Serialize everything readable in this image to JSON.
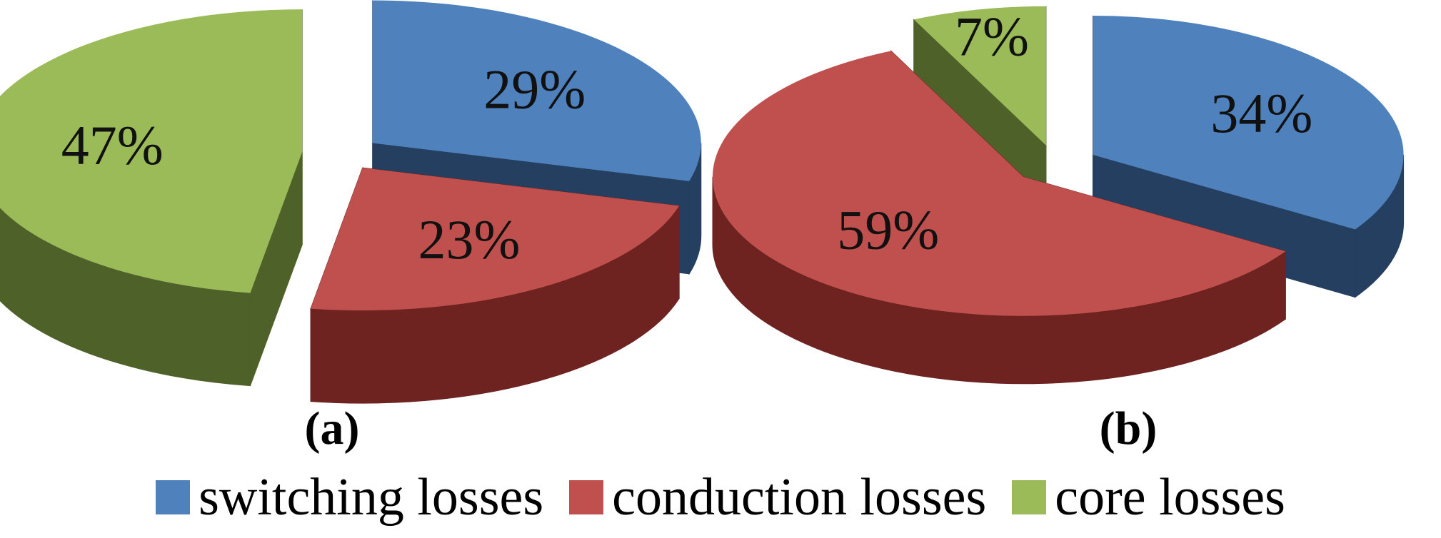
{
  "chart_data": [
    {
      "type": "pie",
      "panel_label": "(a)",
      "slices": [
        {
          "name": "switching losses",
          "value": 29,
          "label": "29%"
        },
        {
          "name": "conduction losses",
          "value": 23,
          "label": "23%"
        },
        {
          "name": "core losses",
          "value": 47,
          "label": "47%"
        }
      ],
      "three_d": true,
      "exploded": true
    },
    {
      "type": "pie",
      "panel_label": "(b)",
      "slices": [
        {
          "name": "switching losses",
          "value": 34,
          "label": "34%"
        },
        {
          "name": "conduction losses",
          "value": 59,
          "label": "59%"
        },
        {
          "name": "core losses",
          "value": 7,
          "label": "7%"
        }
      ],
      "three_d": true,
      "exploded": true
    }
  ],
  "legend": {
    "placement": "bottom",
    "items": [
      {
        "label": "switching losses",
        "color": "#4F81BD"
      },
      {
        "label": "conduction losses",
        "color": "#C0504D"
      },
      {
        "label": "core losses",
        "color": "#9BBB59"
      }
    ]
  },
  "colors": {
    "switching losses": {
      "top": "#4F81BD",
      "side": "#243F60"
    },
    "conduction losses": {
      "top": "#C0504D",
      "side": "#6E2321"
    },
    "core losses": {
      "top": "#9BBB59",
      "side": "#4E6128"
    }
  }
}
